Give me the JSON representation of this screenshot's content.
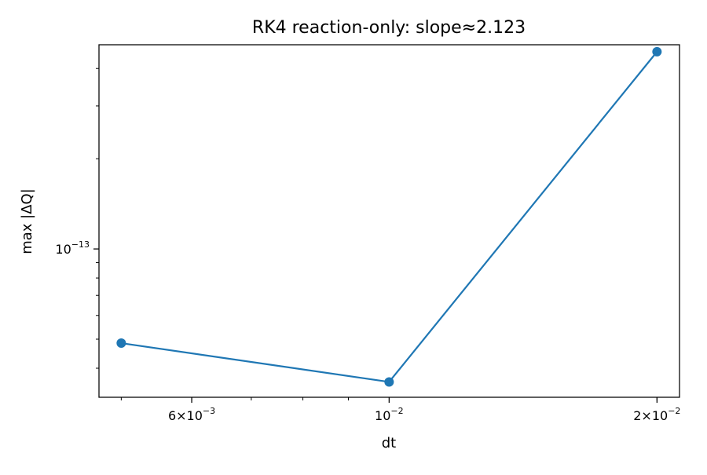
{
  "chart_data": {
    "type": "line",
    "title": "RK4 reaction-only: slope≈2.123",
    "xlabel": "dt",
    "ylabel": "max |ΔQ|",
    "xscale": "log",
    "yscale": "log",
    "xlim": [
      0.00472,
      0.0212
    ],
    "ylim": [
      3.2e-14,
      4.8e-13
    ],
    "x_ticks": [
      {
        "value": 0.006,
        "mantissa": "6",
        "exponent": "−3"
      },
      {
        "value": 0.01,
        "mantissa": "",
        "exponent": "−2"
      },
      {
        "value": 0.02,
        "mantissa": "2",
        "exponent": "−2"
      }
    ],
    "y_ticks": [
      {
        "value": 1e-13,
        "mantissa": "",
        "exponent": "−13"
      }
    ],
    "grid": false,
    "color": "#1f77b4",
    "series": [
      {
        "x": [
          0.005,
          0.01,
          0.02
        ],
        "y": [
          4.85e-14,
          3.6e-14,
          4.55e-13
        ]
      }
    ]
  }
}
